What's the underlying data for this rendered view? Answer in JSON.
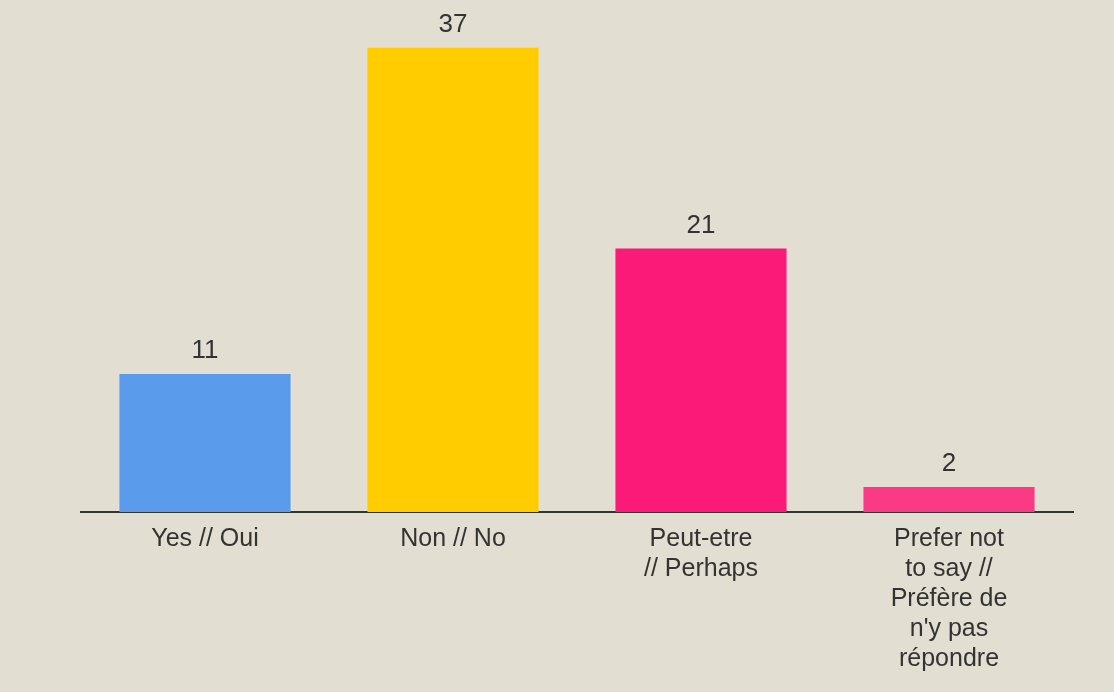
{
  "chart_data": {
    "type": "bar",
    "categories": [
      "Yes // Oui",
      "Non // No",
      "Peut-etre // Perhaps",
      "Prefer not to say // Préfère de n'y pas répondre"
    ],
    "values": [
      11,
      37,
      21,
      2
    ],
    "colors": [
      "#5b9bec",
      "#ffcc00",
      "#fb1a78",
      "#fb3a86"
    ],
    "ylim": [
      0,
      40
    ],
    "grid": false,
    "data_labels": true,
    "tick_labels": "x"
  }
}
